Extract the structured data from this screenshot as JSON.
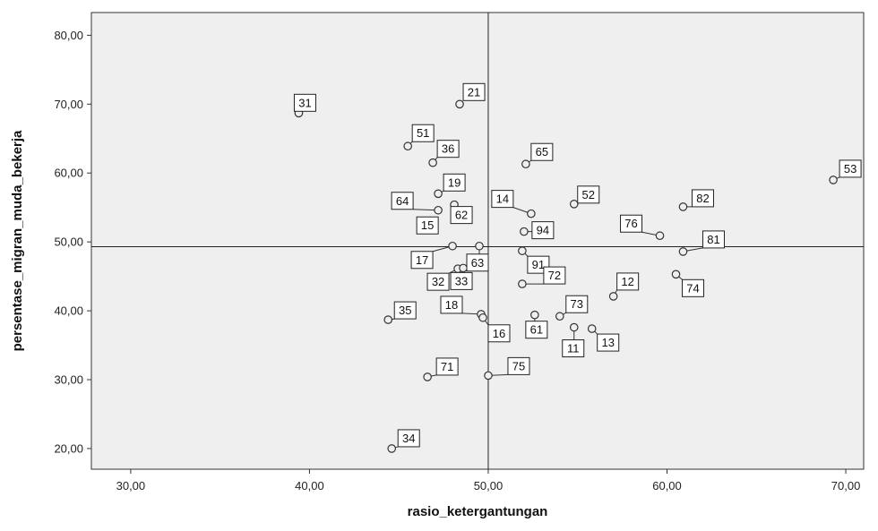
{
  "chart_data": {
    "type": "scatter",
    "xlabel": "rasio_ketergantungan",
    "ylabel": "persentase_migran_muda_bekerja",
    "xlim": [
      27.8,
      71.0
    ],
    "ylim": [
      17.0,
      83.3
    ],
    "xticks": [
      "30,00",
      "40,00",
      "50,00",
      "60,00",
      "70,00"
    ],
    "yticks": [
      "20,00",
      "30,00",
      "40,00",
      "50,00",
      "60,00",
      "70,00",
      "80,00"
    ],
    "reference_lines": {
      "x": 50.0,
      "y": 49.3
    },
    "grid": false,
    "legend": "none",
    "background_color": "#efefef",
    "marker_color": "#333333",
    "points": [
      {
        "label": "31",
        "x": 39.4,
        "y": 68.7
      },
      {
        "label": "21",
        "x": 48.4,
        "y": 70.0
      },
      {
        "label": "51",
        "x": 45.5,
        "y": 63.9
      },
      {
        "label": "36",
        "x": 46.9,
        "y": 61.5
      },
      {
        "label": "65",
        "x": 52.1,
        "y": 61.3
      },
      {
        "label": "53",
        "x": 69.3,
        "y": 59.0
      },
      {
        "label": "19",
        "x": 47.2,
        "y": 57.0
      },
      {
        "label": "14",
        "x": 52.4,
        "y": 54.1
      },
      {
        "label": "52",
        "x": 54.8,
        "y": 55.5
      },
      {
        "label": "82",
        "x": 60.9,
        "y": 55.1
      },
      {
        "label": "64",
        "x": 47.2,
        "y": 54.6
      },
      {
        "label": "62",
        "x": 48.1,
        "y": 55.4
      },
      {
        "label": "15",
        "x": 46.4,
        "y": 52.2
      },
      {
        "label": "76",
        "x": 59.6,
        "y": 50.9
      },
      {
        "label": "94",
        "x": 52.0,
        "y": 51.5
      },
      {
        "label": "17",
        "x": 48.0,
        "y": 49.4
      },
      {
        "label": "63",
        "x": 49.5,
        "y": 49.4
      },
      {
        "label": "81",
        "x": 60.9,
        "y": 48.6
      },
      {
        "label": "91",
        "x": 51.9,
        "y": 48.7
      },
      {
        "label": "32",
        "x": 48.3,
        "y": 46.1
      },
      {
        "label": "33",
        "x": 48.6,
        "y": 46.2
      },
      {
        "label": "72",
        "x": 51.9,
        "y": 43.9
      },
      {
        "label": "12",
        "x": 57.0,
        "y": 42.1
      },
      {
        "label": "74",
        "x": 60.5,
        "y": 45.3
      },
      {
        "label": "18",
        "x": 49.6,
        "y": 39.5
      },
      {
        "label": "16",
        "x": 49.7,
        "y": 39.0
      },
      {
        "label": "73",
        "x": 54.0,
        "y": 39.2
      },
      {
        "label": "35",
        "x": 44.4,
        "y": 38.7
      },
      {
        "label": "61",
        "x": 52.6,
        "y": 39.4
      },
      {
        "label": "11",
        "x": 54.8,
        "y": 37.6
      },
      {
        "label": "13",
        "x": 55.8,
        "y": 37.4
      },
      {
        "label": "71",
        "x": 46.6,
        "y": 30.4
      },
      {
        "label": "75",
        "x": 50.0,
        "y": 30.6
      },
      {
        "label": "34",
        "x": 44.6,
        "y": 20.0
      }
    ]
  }
}
